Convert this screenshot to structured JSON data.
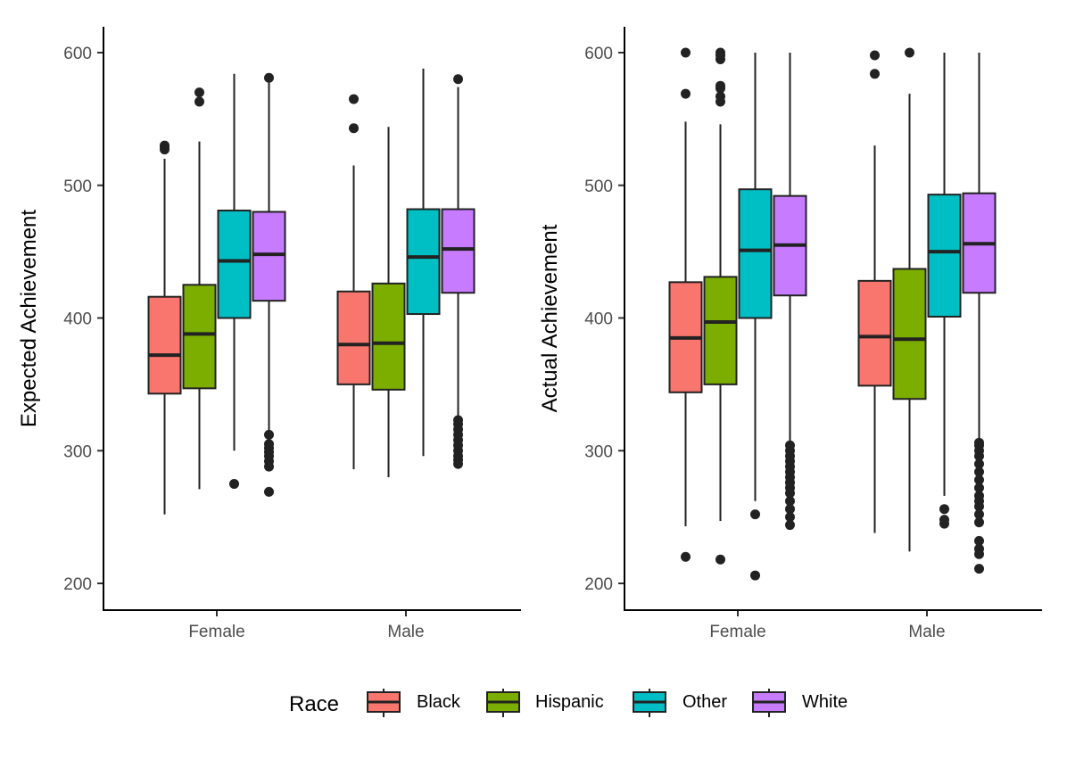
{
  "chart_data": [
    {
      "type": "box",
      "title": "",
      "xlabel": "",
      "ylabel": "Expected Achievement",
      "ylim": [
        180,
        620
      ],
      "yticks": [
        200,
        300,
        400,
        500,
        600
      ],
      "categories": [
        "Female",
        "Male"
      ],
      "grid": false,
      "series": [
        {
          "name": "Black",
          "color": "#F8766D",
          "boxes": [
            {
              "category": "Female",
              "whisker_low": 252,
              "q1": 343,
              "median": 372,
              "q3": 416,
              "whisker_high": 520,
              "outliers": [
                527,
                529,
                530
              ]
            },
            {
              "category": "Male",
              "whisker_low": 286,
              "q1": 350,
              "median": 380,
              "q3": 420,
              "whisker_high": 515,
              "outliers": [
                543,
                565
              ]
            }
          ]
        },
        {
          "name": "Hispanic",
          "color": "#7CAE00",
          "boxes": [
            {
              "category": "Female",
              "whisker_low": 271,
              "q1": 347,
              "median": 388,
              "q3": 425,
              "whisker_high": 533,
              "outliers": [
                563,
                570
              ]
            },
            {
              "category": "Male",
              "whisker_low": 280,
              "q1": 346,
              "median": 381,
              "q3": 426,
              "whisker_high": 544,
              "outliers": []
            }
          ]
        },
        {
          "name": "Other",
          "color": "#00BFC4",
          "boxes": [
            {
              "category": "Female",
              "whisker_low": 300,
              "q1": 400,
              "median": 443,
              "q3": 481,
              "whisker_high": 584,
              "outliers": [
                275
              ]
            },
            {
              "category": "Male",
              "whisker_low": 296,
              "q1": 403,
              "median": 446,
              "q3": 482,
              "whisker_high": 588,
              "outliers": []
            }
          ]
        },
        {
          "name": "White",
          "color": "#C77CFF",
          "boxes": [
            {
              "category": "Female",
              "whisker_low": 313,
              "q1": 413,
              "median": 448,
              "q3": 480,
              "whisker_high": 578,
              "outliers": [
                269,
                288,
                292,
                296,
                299,
                302,
                305,
                312,
                581
              ]
            },
            {
              "category": "Male",
              "whisker_low": 323,
              "q1": 419,
              "median": 452,
              "q3": 482,
              "whisker_high": 574,
              "outliers": [
                290,
                293,
                296,
                300,
                304,
                308,
                312,
                316,
                320,
                323,
                580
              ]
            }
          ]
        }
      ]
    },
    {
      "type": "box",
      "title": "",
      "xlabel": "",
      "ylabel": "Actual Achievement",
      "ylim": [
        180,
        620
      ],
      "yticks": [
        200,
        300,
        400,
        500,
        600
      ],
      "categories": [
        "Female",
        "Male"
      ],
      "grid": false,
      "series": [
        {
          "name": "Black",
          "color": "#F8766D",
          "boxes": [
            {
              "category": "Female",
              "whisker_low": 243,
              "q1": 344,
              "median": 385,
              "q3": 427,
              "whisker_high": 548,
              "outliers": [
                220,
                569,
                600
              ]
            },
            {
              "category": "Male",
              "whisker_low": 238,
              "q1": 349,
              "median": 386,
              "q3": 428,
              "whisker_high": 530,
              "outliers": [
                584,
                598
              ]
            }
          ]
        },
        {
          "name": "Hispanic",
          "color": "#7CAE00",
          "boxes": [
            {
              "category": "Female",
              "whisker_low": 247,
              "q1": 350,
              "median": 397,
              "q3": 431,
              "whisker_high": 546,
              "outliers": [
                218,
                563,
                567,
                573,
                575,
                595,
                598,
                600
              ]
            },
            {
              "category": "Male",
              "whisker_low": 224,
              "q1": 339,
              "median": 384,
              "q3": 437,
              "whisker_high": 569,
              "outliers": [
                600
              ]
            }
          ]
        },
        {
          "name": "Other",
          "color": "#00BFC4",
          "boxes": [
            {
              "category": "Female",
              "whisker_low": 262,
              "q1": 400,
              "median": 451,
              "q3": 497,
              "whisker_high": 600,
              "outliers": [
                206,
                252
              ]
            },
            {
              "category": "Male",
              "whisker_low": 266,
              "q1": 401,
              "median": 450,
              "q3": 493,
              "whisker_high": 600,
              "outliers": [
                245,
                248,
                256
              ]
            }
          ]
        },
        {
          "name": "White",
          "color": "#C77CFF",
          "boxes": [
            {
              "category": "Female",
              "whisker_low": 305,
              "q1": 417,
              "median": 455,
              "q3": 492,
              "whisker_high": 600,
              "outliers": [
                244,
                250,
                256,
                262,
                268,
                272,
                276,
                280,
                284,
                288,
                292,
                296,
                300,
                304
              ]
            },
            {
              "category": "Male",
              "whisker_low": 307,
              "q1": 419,
              "median": 456,
              "q3": 494,
              "whisker_high": 600,
              "outliers": [
                211,
                222,
                226,
                232,
                246,
                252,
                258,
                262,
                266,
                272,
                278,
                284,
                290,
                296,
                300,
                304,
                306
              ]
            }
          ]
        }
      ]
    }
  ],
  "legend": {
    "title": "Race",
    "placement": "bottom",
    "items": [
      {
        "label": "Black",
        "color": "#F8766D"
      },
      {
        "label": "Hispanic",
        "color": "#7CAE00"
      },
      {
        "label": "Other",
        "color": "#00BFC4"
      },
      {
        "label": "White",
        "color": "#C77CFF"
      }
    ]
  }
}
